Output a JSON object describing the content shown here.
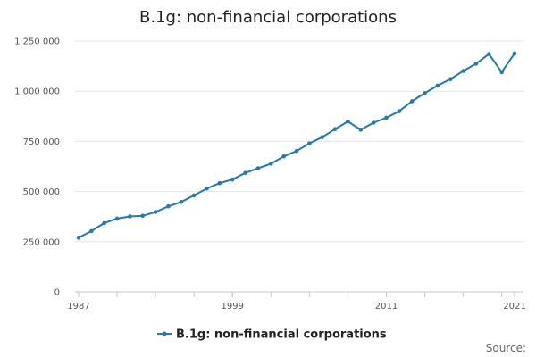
{
  "page": {
    "title": "B.1g: non-financial corporations",
    "source": "Source:"
  },
  "colors": {
    "series": "#1f7ab5",
    "grid": "#e6e6e6",
    "axis": "#c7c7c7"
  },
  "chart_data": {
    "type": "line",
    "title": "B.1g: non-financial corporations",
    "xlabel": "",
    "ylabel": "",
    "xlim": [
      1987,
      2021
    ],
    "ylim": [
      0,
      1250000
    ],
    "grid": true,
    "legend_position": "bottom-center",
    "x_tick_values": [
      1987,
      1999,
      2011,
      2021
    ],
    "x_tick_labels": [
      "1987",
      "1999",
      "2011",
      "2021"
    ],
    "y_tick_values": [
      0,
      250000,
      500000,
      750000,
      1000000,
      1250000
    ],
    "y_tick_labels": [
      "0",
      "250 000",
      "500 000",
      "750 000",
      "1 000 000",
      "1 250 000"
    ],
    "series": [
      {
        "name": "B.1g: non-financial corporations",
        "x": [
          1987,
          1988,
          1989,
          1990,
          1991,
          1992,
          1993,
          1994,
          1995,
          1996,
          1997,
          1998,
          1999,
          2000,
          2001,
          2002,
          2003,
          2004,
          2005,
          2006,
          2007,
          2008,
          2009,
          2010,
          2011,
          2012,
          2013,
          2014,
          2015,
          2016,
          2017,
          2018,
          2019,
          2020,
          2021
        ],
        "values": [
          270000,
          303000,
          343000,
          365000,
          376000,
          379000,
          398000,
          426000,
          448000,
          481000,
          515000,
          542000,
          560000,
          593000,
          616000,
          639000,
          675000,
          702000,
          740000,
          771000,
          811000,
          849000,
          808000,
          843000,
          868000,
          900000,
          950000,
          990000,
          1028000,
          1060000,
          1101000,
          1137000,
          1185000,
          1095000,
          1188000
        ]
      }
    ]
  }
}
